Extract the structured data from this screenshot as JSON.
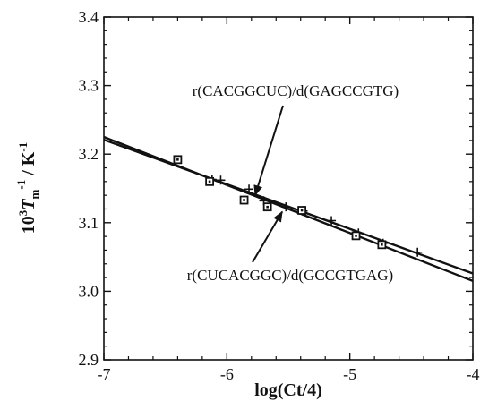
{
  "chart_data": {
    "type": "scatter",
    "title": "",
    "xlabel": "log(Ct/4)",
    "ylabel": {
      "base": "10",
      "exp": "3",
      "symbol": "T",
      "sub": "m",
      "exp2": "-1",
      "unit": " / K",
      "exp3": "-1"
    },
    "xlim": [
      -7,
      -4
    ],
    "ylim": [
      2.9,
      3.4
    ],
    "xticks": [
      -7,
      -6,
      -5,
      -4
    ],
    "xtick_labels": [
      "-7",
      "-6",
      "-5",
      "-4"
    ],
    "yticks": [
      2.9,
      3.0,
      3.1,
      3.2,
      3.3,
      3.4
    ],
    "ytick_labels": [
      "2.9",
      "3.0",
      "3.1",
      "3.2",
      "3.3",
      "3.4"
    ],
    "grid": false,
    "series": [
      {
        "name": "r(CACGGCUC)/d(GAGCCGTG)",
        "marker": "plus",
        "points": [
          {
            "x": -6.12,
            "y": 3.163
          },
          {
            "x": -6.05,
            "y": 3.162
          },
          {
            "x": -5.82,
            "y": 3.149
          },
          {
            "x": -5.7,
            "y": 3.132
          },
          {
            "x": -5.52,
            "y": 3.123
          },
          {
            "x": -5.38,
            "y": 3.117
          },
          {
            "x": -5.15,
            "y": 3.103
          },
          {
            "x": -4.93,
            "y": 3.085
          },
          {
            "x": -4.73,
            "y": 3.07
          },
          {
            "x": -4.45,
            "y": 3.057
          }
        ],
        "fit": {
          "x": [
            -7,
            -4
          ],
          "y": [
            3.221,
            3.026
          ]
        }
      },
      {
        "name": "r(CUCACGGC)/d(GCCGTGAG)",
        "marker": "square",
        "points": [
          {
            "x": -6.4,
            "y": 3.192
          },
          {
            "x": -6.14,
            "y": 3.16
          },
          {
            "x": -5.86,
            "y": 3.133
          },
          {
            "x": -5.67,
            "y": 3.123
          },
          {
            "x": -5.39,
            "y": 3.118
          },
          {
            "x": -4.95,
            "y": 3.081
          },
          {
            "x": -4.74,
            "y": 3.068
          }
        ],
        "fit": {
          "x": [
            -7,
            -4
          ],
          "y": [
            3.225,
            3.015
          ]
        }
      }
    ],
    "annotations": [
      {
        "text": "r(CACGGCUC)/d(GAGCCGTG)",
        "arrow_to": {
          "x": -5.77,
          "y": 3.14
        }
      },
      {
        "text": "r(CUCACGGC)/d(GCCGTGAG)",
        "arrow_to": {
          "x": -5.55,
          "y": 3.116
        }
      }
    ]
  }
}
